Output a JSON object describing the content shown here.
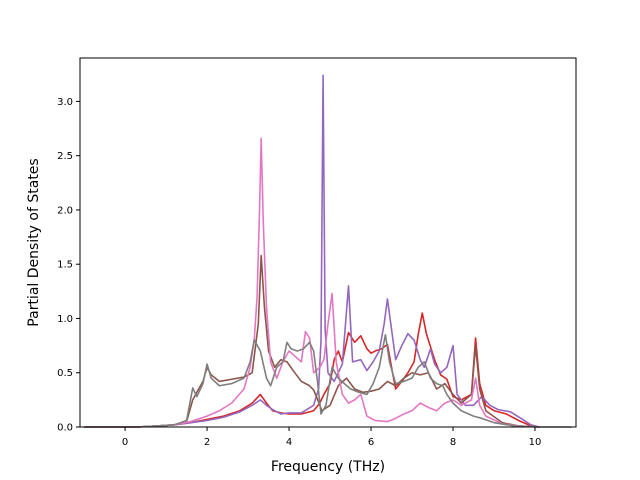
{
  "chart_data": {
    "type": "line",
    "title": "",
    "xlabel": "Frequency (THz)",
    "ylabel": "Partial Density of States",
    "xlim": [
      -1.1,
      11.0
    ],
    "ylim": [
      0.0,
      3.4
    ],
    "xticks": [
      0,
      2,
      4,
      6,
      8,
      10
    ],
    "yticks": [
      0.0,
      0.5,
      1.0,
      1.5,
      2.0,
      2.5,
      3.0
    ],
    "xtick_labels": [
      "0",
      "2",
      "4",
      "6",
      "8",
      "10"
    ],
    "ytick_labels": [
      "0.0",
      "0.5",
      "1.0",
      "1.5",
      "2.0",
      "2.5",
      "3.0"
    ],
    "grid": false,
    "legend": "none",
    "series": [
      {
        "color": "#d62728",
        "points": [
          [
            -1.0,
            0
          ],
          [
            0.3,
            0
          ],
          [
            0.8,
            0.01
          ],
          [
            1.2,
            0.02
          ],
          [
            1.6,
            0.04
          ],
          [
            2.0,
            0.07
          ],
          [
            2.4,
            0.1
          ],
          [
            2.8,
            0.15
          ],
          [
            3.1,
            0.22
          ],
          [
            3.3,
            0.3
          ],
          [
            3.45,
            0.22
          ],
          [
            3.6,
            0.15
          ],
          [
            3.8,
            0.13
          ],
          [
            4.0,
            0.12
          ],
          [
            4.3,
            0.12
          ],
          [
            4.6,
            0.15
          ],
          [
            4.75,
            0.22
          ],
          [
            4.85,
            0.3
          ],
          [
            5.0,
            0.4
          ],
          [
            5.1,
            0.62
          ],
          [
            5.2,
            0.7
          ],
          [
            5.3,
            0.6
          ],
          [
            5.45,
            0.87
          ],
          [
            5.6,
            0.78
          ],
          [
            5.75,
            0.84
          ],
          [
            5.9,
            0.72
          ],
          [
            6.0,
            0.68
          ],
          [
            6.1,
            0.7
          ],
          [
            6.25,
            0.72
          ],
          [
            6.4,
            0.76
          ],
          [
            6.5,
            0.55
          ],
          [
            6.6,
            0.35
          ],
          [
            6.75,
            0.42
          ],
          [
            6.9,
            0.5
          ],
          [
            7.05,
            0.6
          ],
          [
            7.15,
            0.85
          ],
          [
            7.25,
            1.05
          ],
          [
            7.35,
            0.86
          ],
          [
            7.45,
            0.74
          ],
          [
            7.55,
            0.62
          ],
          [
            7.7,
            0.48
          ],
          [
            7.85,
            0.44
          ],
          [
            8.0,
            0.28
          ],
          [
            8.2,
            0.25
          ],
          [
            8.45,
            0.3
          ],
          [
            8.55,
            0.82
          ],
          [
            8.65,
            0.4
          ],
          [
            8.8,
            0.2
          ],
          [
            9.0,
            0.15
          ],
          [
            9.3,
            0.12
          ],
          [
            9.6,
            0.06
          ],
          [
            9.9,
            0.01
          ],
          [
            10.1,
            0
          ]
        ]
      },
      {
        "color": "#9467bd",
        "points": [
          [
            -1.0,
            0
          ],
          [
            0.3,
            0
          ],
          [
            0.8,
            0.01
          ],
          [
            1.2,
            0.02
          ],
          [
            1.6,
            0.04
          ],
          [
            2.0,
            0.06
          ],
          [
            2.4,
            0.09
          ],
          [
            2.8,
            0.14
          ],
          [
            3.1,
            0.2
          ],
          [
            3.3,
            0.25
          ],
          [
            3.45,
            0.2
          ],
          [
            3.6,
            0.16
          ],
          [
            3.8,
            0.12
          ],
          [
            4.0,
            0.13
          ],
          [
            4.3,
            0.13
          ],
          [
            4.6,
            0.2
          ],
          [
            4.72,
            0.35
          ],
          [
            4.78,
            0.8
          ],
          [
            4.83,
            3.24
          ],
          [
            4.88,
            0.9
          ],
          [
            4.95,
            0.5
          ],
          [
            5.1,
            0.42
          ],
          [
            5.3,
            0.58
          ],
          [
            5.45,
            1.3
          ],
          [
            5.55,
            0.6
          ],
          [
            5.75,
            0.62
          ],
          [
            5.9,
            0.52
          ],
          [
            6.05,
            0.6
          ],
          [
            6.2,
            0.7
          ],
          [
            6.32,
            0.95
          ],
          [
            6.4,
            1.18
          ],
          [
            6.5,
            0.9
          ],
          [
            6.6,
            0.62
          ],
          [
            6.75,
            0.75
          ],
          [
            6.9,
            0.86
          ],
          [
            7.05,
            0.8
          ],
          [
            7.2,
            0.62
          ],
          [
            7.3,
            0.55
          ],
          [
            7.45,
            0.72
          ],
          [
            7.55,
            0.58
          ],
          [
            7.7,
            0.5
          ],
          [
            7.85,
            0.55
          ],
          [
            8.0,
            0.75
          ],
          [
            8.1,
            0.3
          ],
          [
            8.3,
            0.2
          ],
          [
            8.5,
            0.2
          ],
          [
            8.7,
            0.28
          ],
          [
            8.9,
            0.2
          ],
          [
            9.1,
            0.16
          ],
          [
            9.4,
            0.14
          ],
          [
            9.7,
            0.07
          ],
          [
            9.9,
            0.02
          ],
          [
            10.1,
            0
          ]
        ]
      },
      {
        "color": "#8c564b",
        "points": [
          [
            -1.0,
            0
          ],
          [
            0.3,
            0
          ],
          [
            0.8,
            0.01
          ],
          [
            1.2,
            0.02
          ],
          [
            1.5,
            0.05
          ],
          [
            1.65,
            0.25
          ],
          [
            1.75,
            0.32
          ],
          [
            1.9,
            0.42
          ],
          [
            2.0,
            0.55
          ],
          [
            2.1,
            0.48
          ],
          [
            2.3,
            0.42
          ],
          [
            2.6,
            0.44
          ],
          [
            2.9,
            0.46
          ],
          [
            3.1,
            0.5
          ],
          [
            3.25,
            0.95
          ],
          [
            3.32,
            1.58
          ],
          [
            3.4,
            1.1
          ],
          [
            3.5,
            0.7
          ],
          [
            3.65,
            0.55
          ],
          [
            3.8,
            0.62
          ],
          [
            3.95,
            0.6
          ],
          [
            4.1,
            0.52
          ],
          [
            4.3,
            0.42
          ],
          [
            4.5,
            0.38
          ],
          [
            4.6,
            0.34
          ],
          [
            4.7,
            0.25
          ],
          [
            4.8,
            0.15
          ],
          [
            5.0,
            0.2
          ],
          [
            5.2,
            0.38
          ],
          [
            5.4,
            0.45
          ],
          [
            5.6,
            0.35
          ],
          [
            5.8,
            0.32
          ],
          [
            6.0,
            0.33
          ],
          [
            6.2,
            0.35
          ],
          [
            6.4,
            0.42
          ],
          [
            6.6,
            0.38
          ],
          [
            6.8,
            0.45
          ],
          [
            7.0,
            0.5
          ],
          [
            7.2,
            0.48
          ],
          [
            7.4,
            0.5
          ],
          [
            7.6,
            0.35
          ],
          [
            7.8,
            0.4
          ],
          [
            8.0,
            0.3
          ],
          [
            8.2,
            0.22
          ],
          [
            8.45,
            0.3
          ],
          [
            8.55,
            0.75
          ],
          [
            8.65,
            0.35
          ],
          [
            8.8,
            0.15
          ],
          [
            9.2,
            0.04
          ],
          [
            9.6,
            0.01
          ],
          [
            10.1,
            0
          ]
        ]
      },
      {
        "color": "#e377c2",
        "points": [
          [
            -1.0,
            0
          ],
          [
            0.3,
            0
          ],
          [
            0.8,
            0.01
          ],
          [
            1.2,
            0.02
          ],
          [
            1.6,
            0.05
          ],
          [
            2.0,
            0.1
          ],
          [
            2.3,
            0.15
          ],
          [
            2.6,
            0.22
          ],
          [
            2.9,
            0.35
          ],
          [
            3.05,
            0.55
          ],
          [
            3.15,
            0.8
          ],
          [
            3.22,
            1.2
          ],
          [
            3.28,
            2.0
          ],
          [
            3.32,
            2.66
          ],
          [
            3.37,
            1.9
          ],
          [
            3.45,
            1.1
          ],
          [
            3.55,
            0.6
          ],
          [
            3.7,
            0.45
          ],
          [
            3.85,
            0.6
          ],
          [
            4.0,
            0.7
          ],
          [
            4.15,
            0.65
          ],
          [
            4.3,
            0.6
          ],
          [
            4.4,
            0.88
          ],
          [
            4.5,
            0.82
          ],
          [
            4.6,
            0.5
          ],
          [
            4.75,
            0.55
          ],
          [
            4.85,
            0.62
          ],
          [
            4.95,
            0.95
          ],
          [
            5.05,
            1.23
          ],
          [
            5.15,
            0.6
          ],
          [
            5.3,
            0.3
          ],
          [
            5.45,
            0.22
          ],
          [
            5.6,
            0.25
          ],
          [
            5.75,
            0.3
          ],
          [
            5.9,
            0.1
          ],
          [
            6.1,
            0.06
          ],
          [
            6.4,
            0.05
          ],
          [
            6.6,
            0.08
          ],
          [
            6.8,
            0.12
          ],
          [
            7.0,
            0.15
          ],
          [
            7.2,
            0.22
          ],
          [
            7.4,
            0.18
          ],
          [
            7.6,
            0.15
          ],
          [
            7.8,
            0.22
          ],
          [
            8.0,
            0.25
          ],
          [
            8.2,
            0.2
          ],
          [
            8.45,
            0.25
          ],
          [
            8.55,
            0.45
          ],
          [
            8.65,
            0.2
          ],
          [
            8.8,
            0.1
          ],
          [
            9.2,
            0.03
          ],
          [
            9.6,
            0.01
          ],
          [
            10.1,
            0
          ]
        ]
      },
      {
        "color": "#7f7f7f",
        "points": [
          [
            -1.0,
            0
          ],
          [
            0.3,
            0
          ],
          [
            0.8,
            0.01
          ],
          [
            1.2,
            0.02
          ],
          [
            1.5,
            0.06
          ],
          [
            1.65,
            0.36
          ],
          [
            1.75,
            0.28
          ],
          [
            1.9,
            0.4
          ],
          [
            2.0,
            0.58
          ],
          [
            2.1,
            0.45
          ],
          [
            2.3,
            0.38
          ],
          [
            2.6,
            0.4
          ],
          [
            2.9,
            0.45
          ],
          [
            3.05,
            0.6
          ],
          [
            3.15,
            0.8
          ],
          [
            3.3,
            0.7
          ],
          [
            3.45,
            0.45
          ],
          [
            3.55,
            0.38
          ],
          [
            3.7,
            0.55
          ],
          [
            3.85,
            0.6
          ],
          [
            3.95,
            0.78
          ],
          [
            4.05,
            0.72
          ],
          [
            4.2,
            0.7
          ],
          [
            4.35,
            0.72
          ],
          [
            4.5,
            0.78
          ],
          [
            4.6,
            0.7
          ],
          [
            4.7,
            0.4
          ],
          [
            4.78,
            0.12
          ],
          [
            4.9,
            0.2
          ],
          [
            5.05,
            0.55
          ],
          [
            5.2,
            0.45
          ],
          [
            5.35,
            0.4
          ],
          [
            5.5,
            0.35
          ],
          [
            5.7,
            0.32
          ],
          [
            5.9,
            0.3
          ],
          [
            6.05,
            0.4
          ],
          [
            6.2,
            0.55
          ],
          [
            6.35,
            0.85
          ],
          [
            6.45,
            0.6
          ],
          [
            6.6,
            0.4
          ],
          [
            6.8,
            0.42
          ],
          [
            7.0,
            0.45
          ],
          [
            7.15,
            0.55
          ],
          [
            7.3,
            0.6
          ],
          [
            7.45,
            0.45
          ],
          [
            7.6,
            0.4
          ],
          [
            7.75,
            0.38
          ],
          [
            7.85,
            0.3
          ],
          [
            8.0,
            0.22
          ],
          [
            8.2,
            0.15
          ],
          [
            8.5,
            0.1
          ],
          [
            8.7,
            0.08
          ],
          [
            9.0,
            0.04
          ],
          [
            9.5,
            0.01
          ],
          [
            10.1,
            0
          ],
          [
            10.9,
            0
          ]
        ]
      }
    ]
  }
}
